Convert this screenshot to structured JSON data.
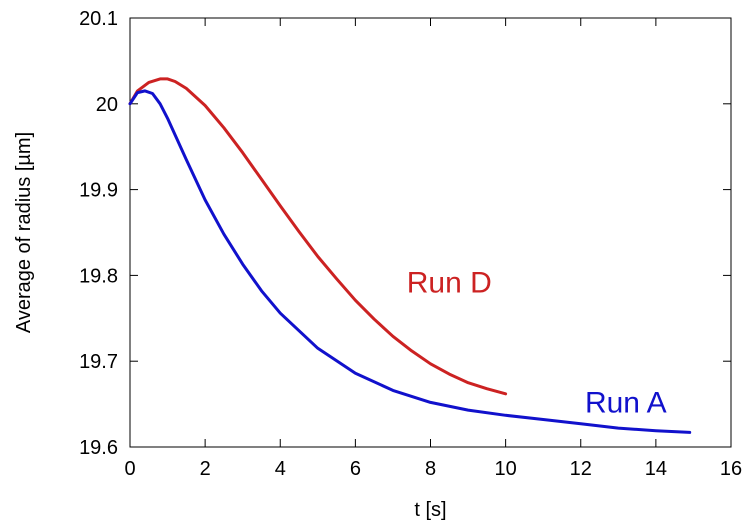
{
  "chart_data": {
    "type": "line",
    "title": "",
    "xlabel": "t [s]",
    "ylabel": "Average of radius [µm]",
    "xlim": [
      0,
      16
    ],
    "ylim": [
      19.6,
      20.1
    ],
    "xticks": [
      0,
      2,
      4,
      6,
      8,
      10,
      12,
      14,
      16
    ],
    "yticks": [
      19.6,
      19.7,
      19.8,
      19.9,
      20,
      20.1
    ],
    "xtick_labels": [
      "0",
      "2",
      "4",
      "6",
      "8",
      "10",
      "12",
      "14",
      "16"
    ],
    "ytick_labels": [
      "19.6",
      "19.7",
      "19.8",
      "19.9",
      "20",
      "20.1"
    ],
    "grid": false,
    "series": [
      {
        "name": "Run D",
        "color": "#cc2222",
        "x": [
          0,
          0.2,
          0.5,
          0.8,
          1.0,
          1.2,
          1.5,
          2,
          2.5,
          3,
          3.5,
          4,
          4.5,
          5,
          5.5,
          6,
          6.5,
          7,
          7.5,
          8,
          8.5,
          9,
          9.5,
          10
        ],
        "y": [
          20.0,
          20.015,
          20.025,
          20.029,
          20.029,
          20.026,
          20.018,
          19.998,
          19.972,
          19.943,
          19.912,
          19.881,
          19.851,
          19.822,
          19.796,
          19.771,
          19.749,
          19.729,
          19.712,
          19.697,
          19.685,
          19.675,
          19.668,
          19.662
        ]
      },
      {
        "name": "Run A",
        "color": "#1111cc",
        "x": [
          0,
          0.2,
          0.4,
          0.6,
          0.8,
          1.0,
          1.5,
          2,
          2.5,
          3,
          3.5,
          4,
          5,
          6,
          7,
          8,
          9,
          10,
          11,
          12,
          13,
          14,
          14.9
        ],
        "y": [
          20.0,
          20.013,
          20.015,
          20.012,
          20.0,
          19.983,
          19.935,
          19.888,
          19.848,
          19.813,
          19.782,
          19.756,
          19.715,
          19.686,
          19.666,
          19.652,
          19.643,
          19.637,
          19.632,
          19.627,
          19.622,
          19.619,
          19.617
        ]
      }
    ],
    "annotations": [
      {
        "text": "Run D",
        "x": 8.5,
        "y": 19.78,
        "color": "#cc2222"
      },
      {
        "text": "Run A",
        "x": 13.2,
        "y": 19.64,
        "color": "#1111cc"
      }
    ]
  }
}
